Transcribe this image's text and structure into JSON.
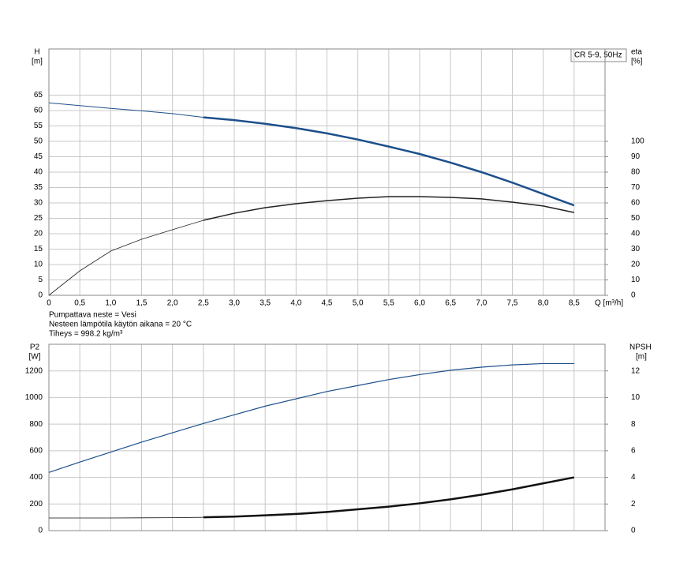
{
  "chart_data": [
    {
      "type": "line",
      "y_label": "H",
      "y_unit": "[m]",
      "y2_label": "eta",
      "y2_unit": "[%]",
      "x_label": "Q [m³/h]",
      "annotation": "CR 5-9, 50Hz",
      "notes": [
        "Pumpattava neste = Vesi",
        "Nesteen lämpötila käytön aikana = 20 °C",
        "Tiheys = 998.2 kg/m³"
      ],
      "xlim": [
        0,
        9
      ],
      "xticks": [
        0,
        {
          "value": 0.5,
          "label": "0,5"
        },
        {
          "value": 1,
          "label": "1,0"
        },
        {
          "value": 1.5,
          "label": "1,5"
        },
        {
          "value": 2,
          "label": "2,0"
        },
        {
          "value": 2.5,
          "label": "2,5"
        },
        {
          "value": 3,
          "label": "3,0"
        },
        {
          "value": 3.5,
          "label": "3,5"
        },
        {
          "value": 4,
          "label": "4,0"
        },
        {
          "value": 4.5,
          "label": "4,5"
        },
        {
          "value": 5,
          "label": "5,0"
        },
        {
          "value": 5.5,
          "label": "5,5"
        },
        {
          "value": 6,
          "label": "6,0"
        },
        {
          "value": 6.5,
          "label": "6,5"
        },
        {
          "value": 7,
          "label": "7,0"
        },
        {
          "value": 7.5,
          "label": "7,5"
        },
        {
          "value": 8,
          "label": "8,0"
        },
        {
          "value": 8.5,
          "label": "8,5"
        }
      ],
      "ylim": [
        0,
        80
      ],
      "yticks": [
        0,
        5,
        10,
        15,
        20,
        25,
        30,
        35,
        40,
        45,
        50,
        55,
        60,
        65
      ],
      "y2lim": [
        0,
        160
      ],
      "y2ticks": [
        0,
        10,
        20,
        30,
        40,
        50,
        60,
        70,
        80,
        90,
        100
      ],
      "grid": true,
      "series": [
        {
          "color": "#1d4f8b",
          "width": 1,
          "x": [
            0,
            0.5,
            1,
            1.5,
            2,
            2.5
          ],
          "values": [
            62.5,
            61.6,
            60.7,
            59.9,
            59.0,
            57.8
          ]
        },
        {
          "color": "#1d4f8b",
          "width": 2.5,
          "x": [
            2.5,
            3,
            3.5,
            4,
            4.5,
            5,
            5.5,
            6,
            6.5,
            7,
            7.5,
            8,
            8.5
          ],
          "values": [
            57.8,
            56.9,
            55.7,
            54.3,
            52.6,
            50.6,
            48.3,
            45.9,
            43.1,
            40.0,
            36.6,
            32.9,
            29.2
          ]
        },
        {
          "color": "#222222",
          "width": 0.8,
          "axis": "y2",
          "x": [
            0,
            0.5,
            1,
            1.5,
            2,
            2.5
          ],
          "values": [
            0,
            15.9,
            28.7,
            36.4,
            42.6,
            48.7
          ]
        },
        {
          "color": "#222222",
          "width": 1.5,
          "axis": "y2",
          "x": [
            2.5,
            3,
            3.5,
            4,
            4.5,
            5,
            5.5,
            6,
            6.5,
            7,
            7.5,
            8,
            8.5
          ],
          "values": [
            48.7,
            53.3,
            56.9,
            59.5,
            61.5,
            63.1,
            64.1,
            64.1,
            63.6,
            62.6,
            60.5,
            58.0,
            53.8
          ]
        }
      ]
    },
    {
      "type": "line",
      "y_label": "P2",
      "y_unit": "[W]",
      "y2_label": "NPSH",
      "y2_unit": "[m]",
      "xlim": [
        0,
        9
      ],
      "xgrid": [
        0,
        0.5,
        1,
        1.5,
        2,
        2.5,
        3,
        3.5,
        4,
        4.5,
        5,
        5.5,
        6,
        6.5,
        7,
        7.5,
        8,
        8.5
      ],
      "ylim": [
        0,
        1400
      ],
      "yticks": [
        0,
        200,
        400,
        600,
        800,
        1000,
        1200
      ],
      "y2lim": [
        0,
        14
      ],
      "y2ticks": [
        0,
        2,
        4,
        6,
        8,
        10,
        12
      ],
      "grid": true,
      "series": [
        {
          "color": "#1d4f8b",
          "width": 1.2,
          "x": [
            0,
            0.5,
            1,
            1.5,
            2,
            2.5,
            3,
            3.5,
            4,
            4.5,
            5,
            5.5,
            6,
            6.5,
            7,
            7.5,
            8,
            8.5
          ],
          "values": [
            437,
            515,
            590,
            665,
            735,
            805,
            870,
            935,
            990,
            1045,
            1090,
            1135,
            1172,
            1205,
            1228,
            1245,
            1255,
            1255
          ]
        },
        {
          "color": "#111111",
          "width": 0.8,
          "axis": "y2",
          "x": [
            0,
            0.5,
            1,
            1.5,
            2,
            2.5
          ],
          "values": [
            0.95,
            0.95,
            0.95,
            0.96,
            0.97,
            1.0
          ]
        },
        {
          "color": "#111111",
          "width": 2.5,
          "axis": "y2",
          "x": [
            2.5,
            3,
            3.5,
            4,
            4.5,
            5,
            5.5,
            6,
            6.5,
            7,
            7.5,
            8,
            8.5
          ],
          "values": [
            1.0,
            1.05,
            1.15,
            1.25,
            1.4,
            1.6,
            1.8,
            2.05,
            2.35,
            2.7,
            3.1,
            3.55,
            4.0
          ]
        }
      ]
    }
  ]
}
